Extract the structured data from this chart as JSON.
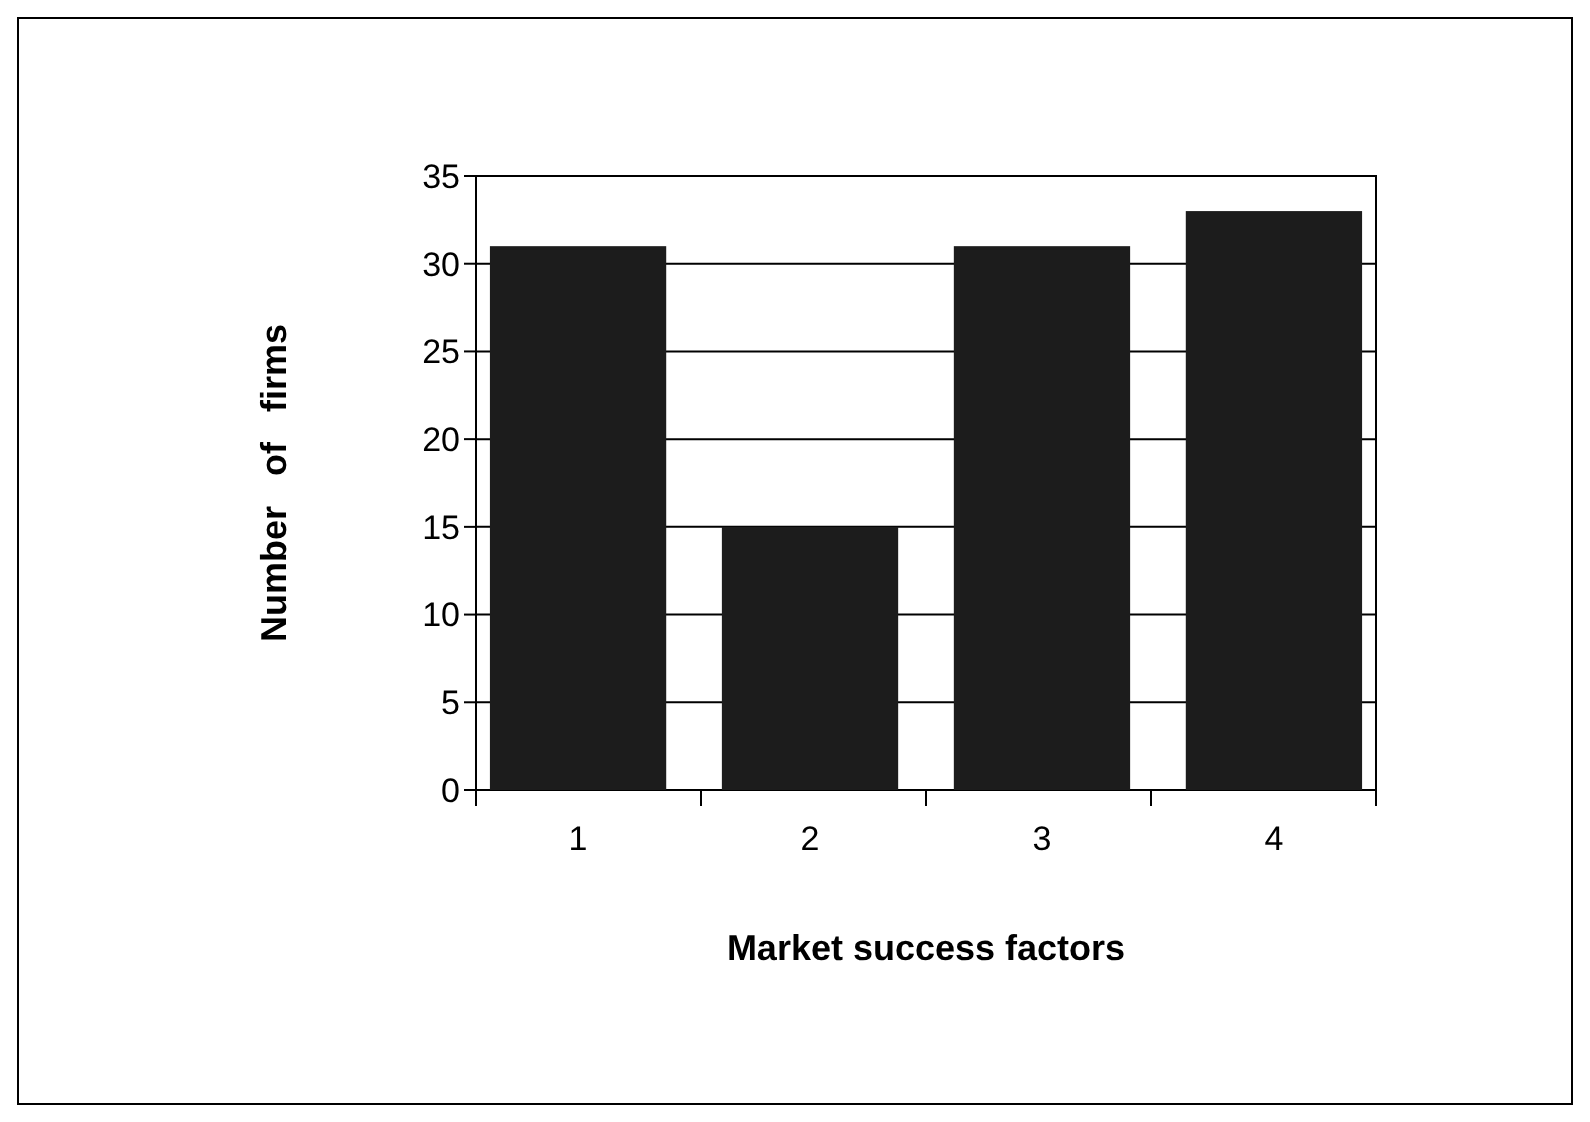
{
  "chart_data": {
    "type": "bar",
    "xlabel": "Market success factors",
    "ylabel": "Number   of   firms",
    "categories": [
      "1",
      "2",
      "3",
      "4"
    ],
    "values": [
      31,
      15,
      31,
      33
    ],
    "color": "#1c1c1c",
    "ylim": [
      0,
      35
    ],
    "yticks": [
      0,
      5,
      10,
      15,
      20,
      25,
      30,
      35
    ],
    "grid": "y"
  }
}
